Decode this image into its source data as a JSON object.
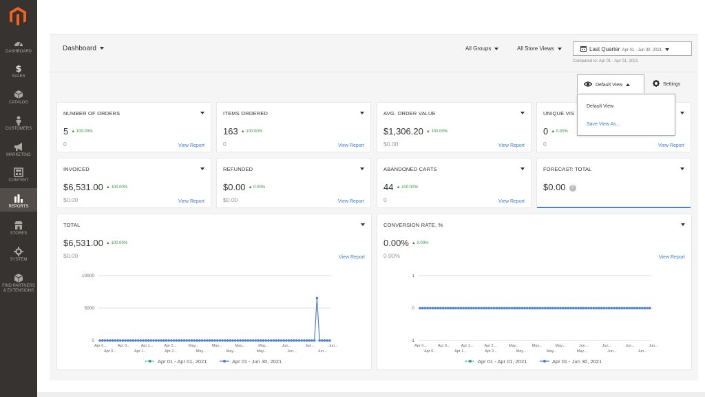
{
  "nav": [
    {
      "label": "DASHBOARD",
      "icon": "gauge-icon"
    },
    {
      "label": "SALES",
      "icon": "dollar-icon"
    },
    {
      "label": "CATALOG",
      "icon": "cube-icon"
    },
    {
      "label": "CUSTOMERS",
      "icon": "person-icon"
    },
    {
      "label": "MARKETING",
      "icon": "megaphone-icon"
    },
    {
      "label": "CONTENT",
      "icon": "layout-icon"
    },
    {
      "label": "REPORTS",
      "icon": "bar-chart-icon"
    },
    {
      "label": "STORES",
      "icon": "store-icon"
    },
    {
      "label": "SYSTEM",
      "icon": "gear-icon"
    },
    {
      "label": "FIND PARTNERS",
      "label2": "& EXTENSIONS",
      "icon": "box-icon"
    }
  ],
  "header": {
    "title": "Dashboard",
    "groups": "All Groups",
    "store_views": "All Store Views",
    "period_label": "Last Quarter",
    "period_range": "Apr 01 - Jun 30, 2021",
    "compared": "Compared to: Apr 01 - Apr 01, 2021"
  },
  "view": {
    "button": "Default View",
    "menu": [
      "Default View",
      "Save View As..."
    ],
    "settings": "Settings"
  },
  "cards": [
    {
      "title": "NUMBER OF ORDERS",
      "value": "5",
      "change": "100.00%",
      "prev": "0",
      "link": "View Report"
    },
    {
      "title": "ITEMS ORDERED",
      "value": "163",
      "change": "100.00%",
      "prev": "0",
      "link": "View Report"
    },
    {
      "title": "AVG. ORDER VALUE",
      "value": "$1,306.20",
      "change": "100.00%",
      "prev": "$0.00",
      "link": "View Report"
    },
    {
      "title": "UNIQUE VIS",
      "value": "0",
      "change": "0.00%",
      "prev": "0",
      "link": "View Report"
    },
    {
      "title": "INVOICED",
      "value": "$6,531.00",
      "change": "100.00%",
      "prev": "$0.00",
      "link": "View Report"
    },
    {
      "title": "REFUNDED",
      "value": "$0.00",
      "change": "0.00%",
      "prev": "$0.00",
      "link": "View Report"
    },
    {
      "title": "ABANDONED CARTS",
      "value": "44",
      "change": "100.00%",
      "prev": "0",
      "link": "View Report"
    },
    {
      "title": "FORECAST: TOTAL",
      "value": "$0.00",
      "change": "",
      "prev": "",
      "link": ""
    }
  ],
  "charts": [
    {
      "title": "TOTAL",
      "value": "$6,531.00",
      "change": "100.00%",
      "prev": "$0.00",
      "link": "View Report"
    },
    {
      "title": "CONVERSION RATE, %",
      "value": "0.00%",
      "change": "0.00%",
      "prev": "0.00%",
      "link": "View Report"
    }
  ],
  "chart_data": [
    {
      "type": "line",
      "title": "",
      "ylim": [
        0,
        10000
      ],
      "yticks": [
        "10000",
        "5000",
        "0"
      ],
      "xticks_top": [
        "Apr 0...",
        "Apr 0...",
        "Apr 1...",
        "Apr 2...",
        "May...",
        "May...",
        "May...",
        "May...",
        "Jun...",
        "Jun...",
        "Jun..."
      ],
      "xticks_bottom": [
        "Apr 0...",
        "Apr 1...",
        "Apr 2...",
        "May...",
        "May...",
        "May...",
        "Jun...",
        "Jun..."
      ],
      "series": [
        {
          "name": "Apr 01 - Apr 01, 2021",
          "color": "#1fa58a",
          "values": [
            0
          ]
        },
        {
          "name": "Apr 01 - Jun 30, 2021",
          "color": "#4a7ed9",
          "values": [
            0,
            0,
            0,
            0,
            0,
            0,
            0,
            0,
            0,
            0,
            0,
            0,
            0,
            0,
            0,
            0,
            0,
            0,
            0,
            0,
            0,
            0,
            0,
            0,
            0,
            0,
            0,
            0,
            0,
            0,
            0,
            0,
            0,
            0,
            0,
            0,
            0,
            0,
            0,
            0,
            0,
            0,
            0,
            0,
            0,
            0,
            0,
            0,
            0,
            0,
            0,
            0,
            0,
            0,
            0,
            0,
            0,
            0,
            0,
            0,
            0,
            0,
            0,
            0,
            0,
            0,
            0,
            0,
            0,
            0,
            0,
            0,
            0,
            0,
            0,
            0,
            0,
            0,
            0,
            0,
            0,
            0,
            0,
            0,
            0,
            6531,
            0,
            0,
            0,
            0,
            0
          ]
        }
      ]
    },
    {
      "type": "line",
      "title": "",
      "ylim": [
        -1,
        1
      ],
      "yticks": [
        "1",
        "0",
        "-1"
      ],
      "xticks_top": [
        "Apr 0...",
        "Apr 0...",
        "Apr 1...",
        "Apr 2...",
        "May...",
        "May...",
        "May...",
        "Jun...",
        "Jun...",
        "Jun...",
        "Jun..."
      ],
      "xticks_bottom": [
        "Apr 0...",
        "Apr 1...",
        "Apr 2...",
        "May...",
        "May...",
        "May...",
        "Jun...",
        "Jun..."
      ],
      "series": [
        {
          "name": "Apr 01 - Apr 01, 2021",
          "color": "#1fa58a",
          "values": [
            0
          ]
        },
        {
          "name": "Apr 01 - Jun 30, 2021",
          "color": "#4a7ed9",
          "values": [
            0,
            0,
            0,
            0,
            0,
            0,
            0,
            0,
            0,
            0,
            0,
            0,
            0,
            0,
            0,
            0,
            0,
            0,
            0,
            0,
            0,
            0,
            0,
            0,
            0,
            0,
            0,
            0,
            0,
            0,
            0,
            0,
            0,
            0,
            0,
            0,
            0,
            0,
            0,
            0,
            0,
            0,
            0,
            0,
            0,
            0,
            0,
            0,
            0,
            0,
            0,
            0,
            0,
            0,
            0,
            0,
            0,
            0,
            0,
            0,
            0,
            0,
            0,
            0,
            0,
            0,
            0,
            0,
            0,
            0,
            0,
            0,
            0,
            0,
            0,
            0,
            0,
            0,
            0,
            0,
            0,
            0,
            0,
            0,
            0,
            0,
            0,
            0,
            0,
            0,
            0
          ]
        }
      ]
    }
  ]
}
